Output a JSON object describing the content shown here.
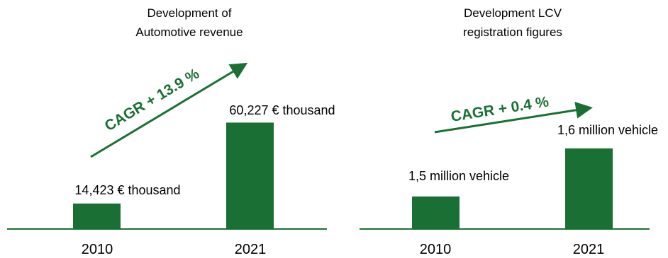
{
  "colors": {
    "bar": "#1a7034",
    "axis": "#1a7034",
    "arrow": "#1a7034",
    "text": "#1a1a1a"
  },
  "chart_data": [
    {
      "type": "bar",
      "title_lines": [
        "Development of",
        "Automotive revenue"
      ],
      "categories": [
        "2010",
        "2021"
      ],
      "values": [
        14423,
        60227
      ],
      "value_labels": [
        "14,423 € thousand",
        "60,227 € thousand"
      ],
      "ylim": [
        0,
        64000
      ],
      "annotation": "CAGR + 13.9 %",
      "grid": false
    },
    {
      "type": "bar",
      "title_lines": [
        "Development LCV",
        "registration figures"
      ],
      "categories": [
        "2010",
        "2021"
      ],
      "values": [
        1.5,
        1.6
      ],
      "value_labels": [
        "1,5 million vehicle",
        "1,6 million vehicle"
      ],
      "annotation": "CAGR + 0.4 %",
      "grid": false
    }
  ]
}
